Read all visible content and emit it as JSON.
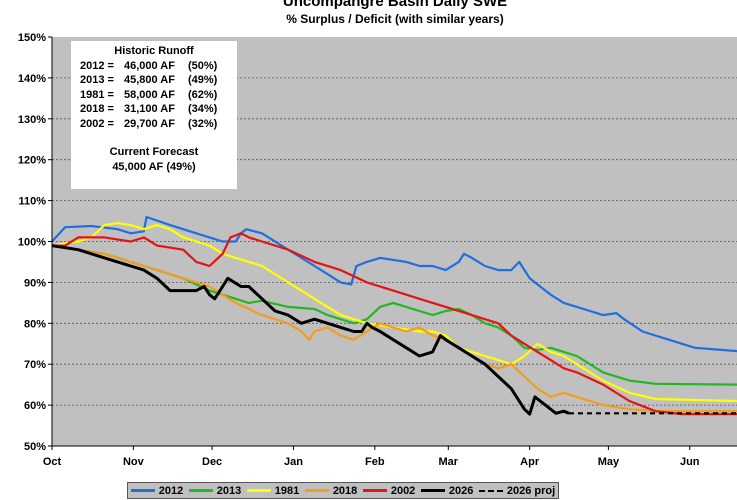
{
  "chart_data": {
    "type": "line",
    "title": "Uncompangre Basin Daily SWE",
    "subtitle": "% Surplus / Deficit (with similar years)",
    "xlabel": "",
    "ylabel": "",
    "x_unit": "days since Oct 1",
    "xlim": [
      0,
      261
    ],
    "ylim": [
      50,
      150
    ],
    "yticks": [
      "50%",
      "60%",
      "70%",
      "80%",
      "90%",
      "100%",
      "110%",
      "120%",
      "130%",
      "140%",
      "150%"
    ],
    "xticks": [
      {
        "label": "Oct",
        "day": 0
      },
      {
        "label": "Nov",
        "day": 31
      },
      {
        "label": "Dec",
        "day": 61
      },
      {
        "label": "Jan",
        "day": 92
      },
      {
        "label": "Feb",
        "day": 123
      },
      {
        "label": "Mar",
        "day": 151
      },
      {
        "label": "Apr",
        "day": 182
      },
      {
        "label": "May",
        "day": 212
      },
      {
        "label": "Jun",
        "day": 243
      }
    ],
    "grid": true,
    "legend_position": "bottom",
    "series": [
      {
        "name": "2012",
        "color": "#1f6fe0",
        "dash": false,
        "points": [
          [
            0,
            100
          ],
          [
            5,
            103.5
          ],
          [
            15,
            103.8
          ],
          [
            25,
            103
          ],
          [
            30,
            102
          ],
          [
            35,
            102.5
          ],
          [
            36,
            106
          ],
          [
            45,
            104
          ],
          [
            55,
            102
          ],
          [
            60,
            101
          ],
          [
            65,
            100
          ],
          [
            70,
            100
          ],
          [
            72,
            102
          ],
          [
            74,
            103
          ],
          [
            80,
            102
          ],
          [
            90,
            98
          ],
          [
            100,
            94
          ],
          [
            105,
            92
          ],
          [
            110,
            90
          ],
          [
            114,
            89.5
          ],
          [
            116,
            94
          ],
          [
            120,
            95
          ],
          [
            125,
            96
          ],
          [
            130,
            95.5
          ],
          [
            135,
            95
          ],
          [
            140,
            94
          ],
          [
            145,
            94
          ],
          [
            150,
            93
          ],
          [
            155,
            95
          ],
          [
            157,
            97
          ],
          [
            160,
            96
          ],
          [
            165,
            94
          ],
          [
            170,
            93
          ],
          [
            175,
            93
          ],
          [
            178,
            95
          ],
          [
            182,
            91
          ],
          [
            190,
            87
          ],
          [
            195,
            85
          ],
          [
            200,
            84
          ],
          [
            205,
            83
          ],
          [
            210,
            82
          ],
          [
            215,
            82.5
          ],
          [
            218,
            81
          ],
          [
            225,
            78
          ],
          [
            235,
            76
          ],
          [
            245,
            74
          ],
          [
            255,
            73.5
          ],
          [
            261,
            73.2
          ]
        ]
      },
      {
        "name": "2013",
        "color": "#22b822",
        "dash": false,
        "points": [
          [
            0,
            99
          ],
          [
            10,
            98
          ],
          [
            20,
            97
          ],
          [
            30,
            95
          ],
          [
            35,
            94
          ],
          [
            40,
            93
          ],
          [
            45,
            92
          ],
          [
            50,
            91
          ],
          [
            60,
            88
          ],
          [
            70,
            86
          ],
          [
            75,
            85
          ],
          [
            80,
            85.5
          ],
          [
            90,
            84
          ],
          [
            100,
            83.5
          ],
          [
            105,
            82
          ],
          [
            110,
            81
          ],
          [
            115,
            80
          ],
          [
            120,
            81
          ],
          [
            125,
            84
          ],
          [
            130,
            85
          ],
          [
            135,
            84
          ],
          [
            140,
            83
          ],
          [
            145,
            82
          ],
          [
            150,
            83
          ],
          [
            155,
            83.5
          ],
          [
            160,
            82
          ],
          [
            165,
            80
          ],
          [
            170,
            79
          ],
          [
            175,
            77
          ],
          [
            180,
            74
          ],
          [
            185,
            73.5
          ],
          [
            190,
            74
          ],
          [
            195,
            73
          ],
          [
            200,
            72
          ],
          [
            205,
            70
          ],
          [
            210,
            68
          ],
          [
            220,
            66
          ],
          [
            230,
            65.2
          ],
          [
            261,
            65
          ]
        ]
      },
      {
        "name": "1981",
        "color": "#ffff00",
        "dash": false,
        "points": [
          [
            0,
            99
          ],
          [
            10,
            100
          ],
          [
            15,
            101
          ],
          [
            20,
            104
          ],
          [
            25,
            104.5
          ],
          [
            30,
            104
          ],
          [
            35,
            103
          ],
          [
            40,
            104
          ],
          [
            45,
            103
          ],
          [
            50,
            101
          ],
          [
            55,
            100
          ],
          [
            60,
            99
          ],
          [
            65,
            97
          ],
          [
            70,
            96
          ],
          [
            75,
            95
          ],
          [
            80,
            94
          ],
          [
            90,
            90
          ],
          [
            100,
            86
          ],
          [
            105,
            84
          ],
          [
            110,
            82
          ],
          [
            115,
            81
          ],
          [
            120,
            80
          ],
          [
            130,
            79
          ],
          [
            140,
            78
          ],
          [
            145,
            78
          ],
          [
            150,
            77
          ],
          [
            155,
            74
          ],
          [
            160,
            73
          ],
          [
            165,
            72
          ],
          [
            170,
            71
          ],
          [
            175,
            70
          ],
          [
            180,
            72
          ],
          [
            185,
            75
          ],
          [
            190,
            73
          ],
          [
            195,
            72
          ],
          [
            200,
            70
          ],
          [
            205,
            68
          ],
          [
            210,
            66
          ],
          [
            220,
            63
          ],
          [
            230,
            61.5
          ],
          [
            261,
            61
          ]
        ]
      },
      {
        "name": "2018",
        "color": "#f39c1e",
        "dash": false,
        "points": [
          [
            0,
            99
          ],
          [
            10,
            98
          ],
          [
            20,
            97
          ],
          [
            30,
            95
          ],
          [
            40,
            93
          ],
          [
            50,
            91
          ],
          [
            60,
            89
          ],
          [
            70,
            85
          ],
          [
            80,
            82
          ],
          [
            90,
            80
          ],
          [
            95,
            78
          ],
          [
            98,
            76
          ],
          [
            100,
            78
          ],
          [
            105,
            79
          ],
          [
            110,
            77
          ],
          [
            115,
            76
          ],
          [
            120,
            78
          ],
          [
            125,
            80
          ],
          [
            130,
            79
          ],
          [
            135,
            78
          ],
          [
            140,
            79
          ],
          [
            145,
            77
          ],
          [
            150,
            76
          ],
          [
            155,
            74
          ],
          [
            160,
            72
          ],
          [
            165,
            70
          ],
          [
            170,
            69
          ],
          [
            175,
            70
          ],
          [
            180,
            67
          ],
          [
            185,
            64
          ],
          [
            190,
            62
          ],
          [
            195,
            63
          ],
          [
            200,
            62
          ],
          [
            210,
            60
          ],
          [
            220,
            59
          ],
          [
            230,
            58.5
          ],
          [
            261,
            58.5
          ]
        ]
      },
      {
        "name": "2002",
        "color": "#e31414",
        "dash": false,
        "points": [
          [
            0,
            99
          ],
          [
            5,
            99
          ],
          [
            10,
            101
          ],
          [
            20,
            101
          ],
          [
            30,
            100
          ],
          [
            35,
            101
          ],
          [
            40,
            99
          ],
          [
            50,
            98
          ],
          [
            55,
            95
          ],
          [
            60,
            94
          ],
          [
            65,
            97
          ],
          [
            68,
            101
          ],
          [
            72,
            102
          ],
          [
            75,
            101
          ],
          [
            80,
            100
          ],
          [
            90,
            98
          ],
          [
            100,
            95
          ],
          [
            110,
            93
          ],
          [
            120,
            90
          ],
          [
            130,
            88
          ],
          [
            140,
            86
          ],
          [
            150,
            84
          ],
          [
            160,
            82
          ],
          [
            170,
            80
          ],
          [
            175,
            77
          ],
          [
            180,
            75
          ],
          [
            185,
            73
          ],
          [
            190,
            71
          ],
          [
            195,
            69
          ],
          [
            200,
            68
          ],
          [
            210,
            65
          ],
          [
            220,
            61
          ],
          [
            230,
            58.5
          ],
          [
            240,
            57.8
          ],
          [
            261,
            57.8
          ]
        ]
      },
      {
        "name": "2026",
        "color": "#000000",
        "dash": false,
        "points": [
          [
            0,
            99
          ],
          [
            10,
            98
          ],
          [
            20,
            96
          ],
          [
            30,
            94
          ],
          [
            35,
            93
          ],
          [
            40,
            91
          ],
          [
            45,
            88
          ],
          [
            50,
            88
          ],
          [
            55,
            88
          ],
          [
            58,
            89
          ],
          [
            60,
            87
          ],
          [
            62,
            86
          ],
          [
            65,
            89
          ],
          [
            67,
            91
          ],
          [
            72,
            89
          ],
          [
            75,
            89
          ],
          [
            80,
            86
          ],
          [
            85,
            83
          ],
          [
            90,
            82
          ],
          [
            95,
            80
          ],
          [
            100,
            81
          ],
          [
            105,
            80
          ],
          [
            110,
            79
          ],
          [
            115,
            78
          ],
          [
            118,
            78
          ],
          [
            120,
            80
          ],
          [
            122,
            79
          ],
          [
            125,
            78
          ],
          [
            130,
            76
          ],
          [
            135,
            74
          ],
          [
            140,
            72
          ],
          [
            145,
            73
          ],
          [
            148,
            77
          ],
          [
            150,
            76
          ],
          [
            155,
            74
          ],
          [
            160,
            72
          ],
          [
            165,
            70
          ],
          [
            170,
            67
          ],
          [
            175,
            64
          ],
          [
            180,
            59
          ],
          [
            182,
            57.8
          ],
          [
            184,
            62
          ],
          [
            188,
            60
          ],
          [
            192,
            58
          ],
          [
            195,
            58.5
          ],
          [
            197,
            58
          ]
        ]
      },
      {
        "name": "2026 proj",
        "color": "#000000",
        "dash": true,
        "points": [
          [
            197,
            58
          ],
          [
            261,
            58
          ]
        ]
      }
    ],
    "annotation": {
      "heading": "Historic Runoff",
      "rows": [
        [
          "2012 =",
          "46,000 AF",
          "(50%)"
        ],
        [
          "2013 =",
          "45,800 AF",
          "(49%)"
        ],
        [
          "1981 =",
          "58,000 AF",
          "(62%)"
        ],
        [
          "2018 =",
          "31,100 AF",
          "(34%)"
        ],
        [
          "2002 =",
          "29,700 AF",
          "(32%)"
        ]
      ],
      "forecast_heading": "Current Forecast",
      "forecast_value": "45,000 AF  (49%)"
    }
  }
}
